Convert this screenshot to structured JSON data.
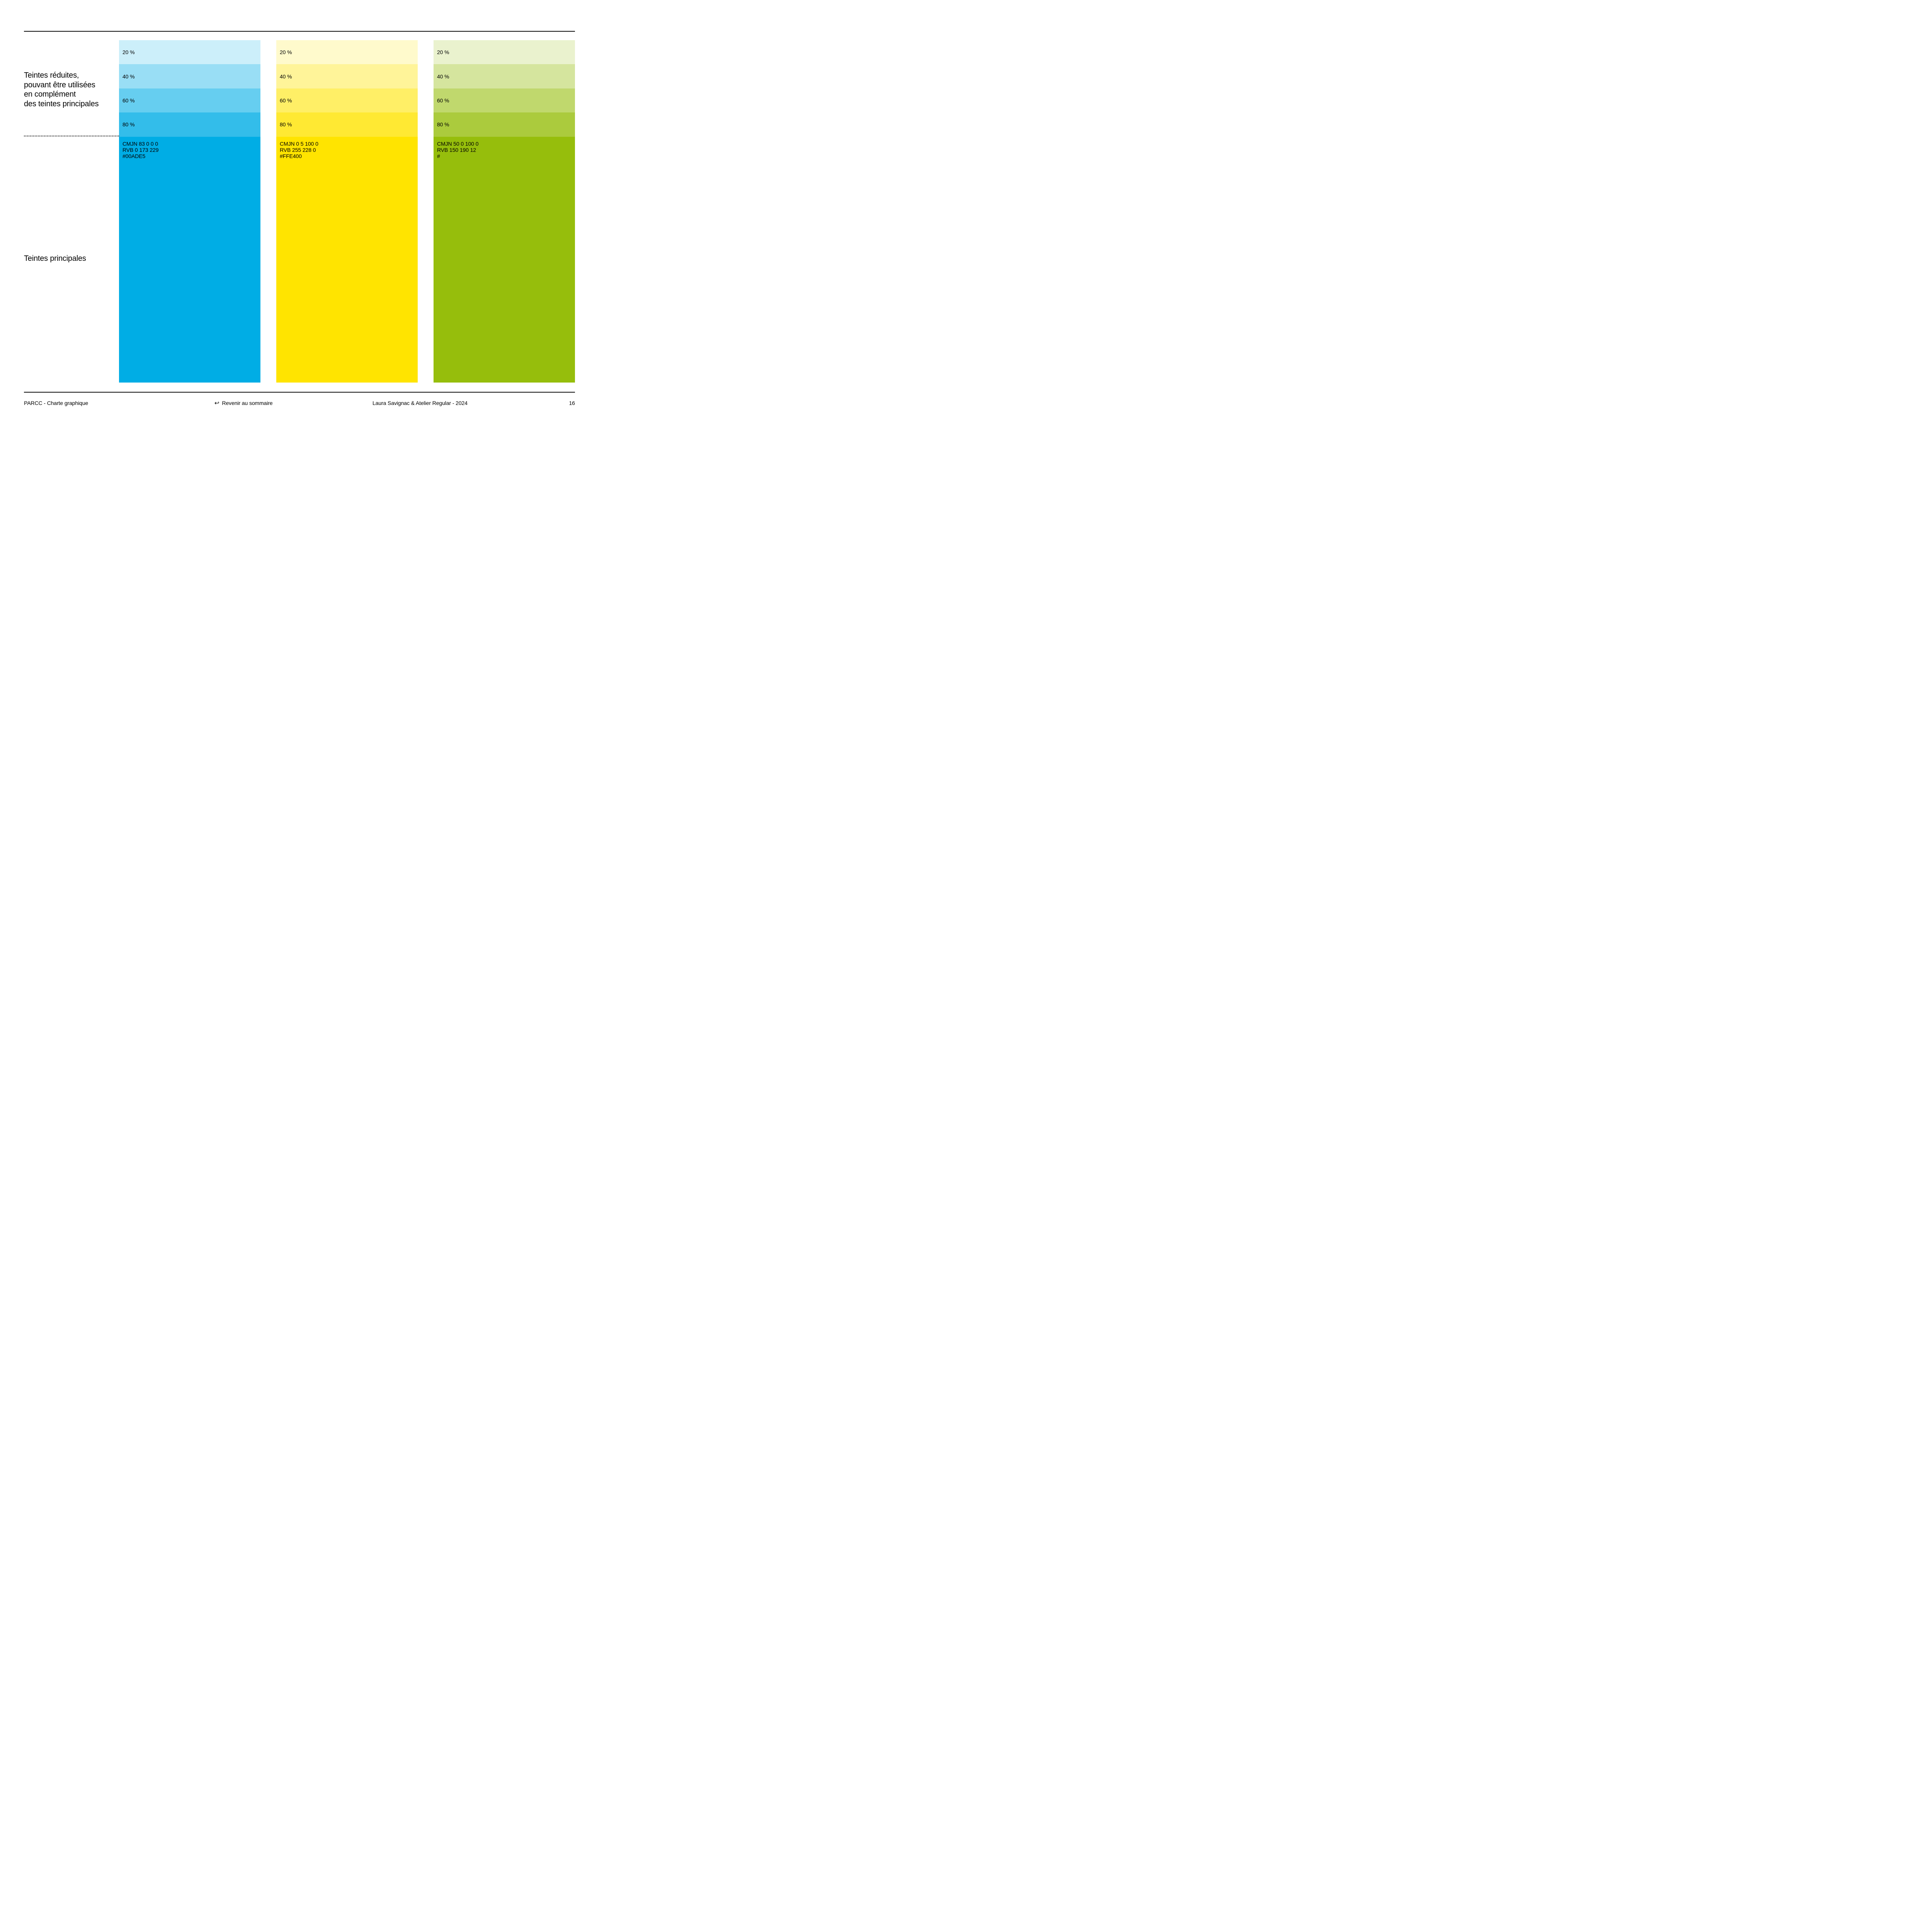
{
  "labels": {
    "section1_lines": [
      "Teintes réduites,",
      "pouvant être utilisées",
      "en complément",
      "des teintes principales"
    ],
    "section2": "Teintes principales"
  },
  "columns": [
    {
      "name": "blue",
      "bands": [
        {
          "label": "20 %",
          "color": "#CCEFFA"
        },
        {
          "label": "40 %",
          "color": "#99DEF5"
        },
        {
          "label": "60 %",
          "color": "#66CEF0"
        },
        {
          "label": "80 %",
          "color": "#33BDEA"
        }
      ],
      "main": {
        "color": "#00ADE5",
        "specs": [
          "CMJN 83 0 0 0",
          "RVB 0 173 229",
          "#00ADE5"
        ]
      }
    },
    {
      "name": "yellow",
      "bands": [
        {
          "label": "20 %",
          "color": "#FFFACC"
        },
        {
          "label": "40 %",
          "color": "#FFF499"
        },
        {
          "label": "60 %",
          "color": "#FFEF66"
        },
        {
          "label": "80 %",
          "color": "#FFE933"
        }
      ],
      "main": {
        "color": "#FFE400",
        "specs": [
          "CMJN 0 5 100 0",
          "RVB 255 228 0",
          "#FFE400"
        ]
      }
    },
    {
      "name": "green",
      "bands": [
        {
          "label": "20 %",
          "color": "#EAF2CE"
        },
        {
          "label": "40 %",
          "color": "#D5E59E"
        },
        {
          "label": "60 %",
          "color": "#C0D86D"
        },
        {
          "label": "80 %",
          "color": "#ABCB3D"
        }
      ],
      "main": {
        "color": "#96BE0C",
        "specs": [
          "CMJN 50 0 100 0",
          "RVB 150 190 12",
          "#"
        ]
      }
    }
  ],
  "footer": {
    "left": "PARCC - Charte graphique",
    "back_icon": "↩",
    "back_label": "Revenir au sommaire",
    "credits": "Laura Savignac & Atelier Regular - 2024",
    "page_number": "16"
  }
}
